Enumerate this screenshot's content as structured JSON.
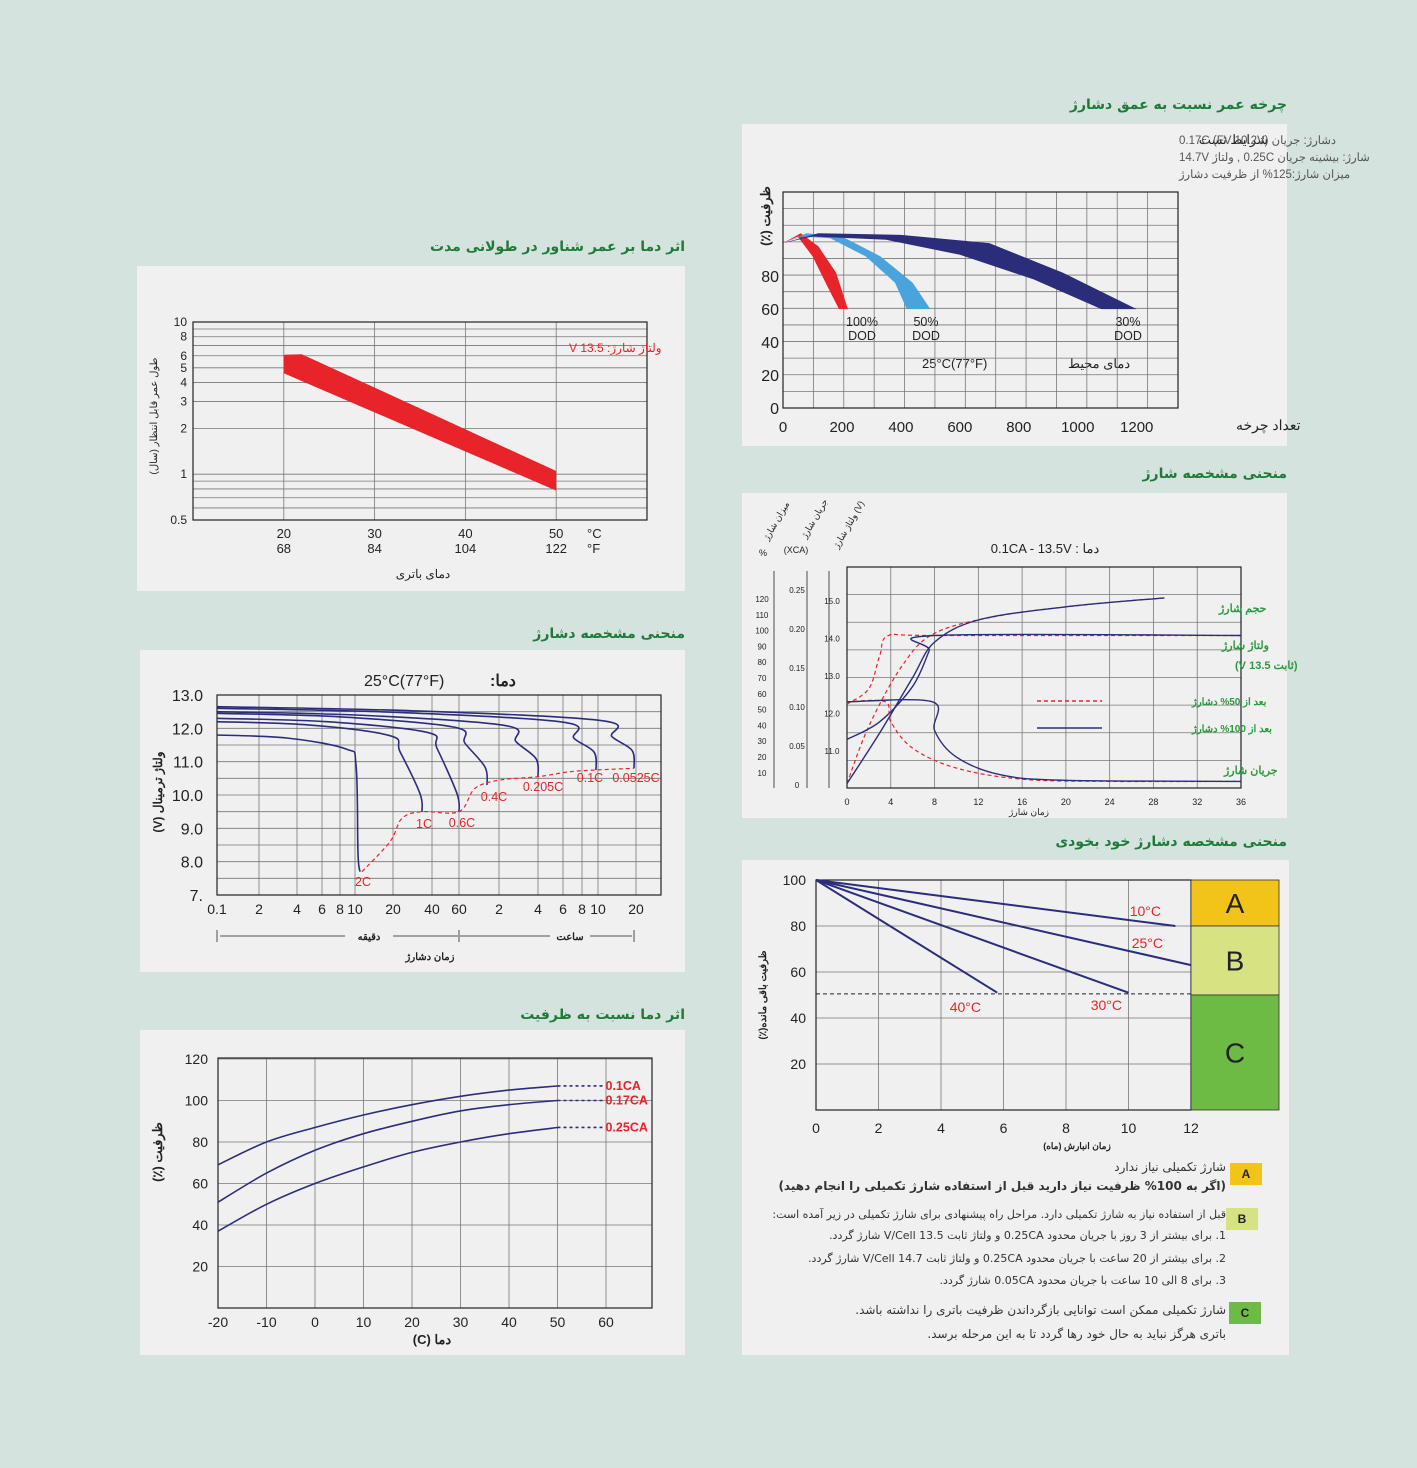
{
  "titles": {
    "cycle_life": "چرخه عمر نسبت به عمق دشارژ",
    "float_life": "اثر دما بر عمر شناور در طولانی مدت",
    "charge": "منحنی مشخصه شارژ",
    "discharge": "منحنی مشخصه دشارژ",
    "self_discharge": "منحنی مشخصه دشارژ خود بخودی",
    "temp_capacity": "اثر دما نسبت به ظرفیت"
  },
  "colors": {
    "navy": "#2b2d7a",
    "red": "#e8232a",
    "light_blue": "#4aa3dc",
    "title_green": "#1f7a3a",
    "zone_a": "#f2c419",
    "zone_b": "#d7e283",
    "zone_c": "#6dba45"
  },
  "chart_data": [
    {
      "id": "cycle_life",
      "type": "area",
      "test_label": "شرایط تست",
      "conditions": [
        "دشارژ: جریان 0.17C (FV 10.2V)",
        "شارژ: بیشینه جریان 0.25C , ولتاژ 14.7V",
        "میزان شارژ:125% از ظرفیت دشارژ"
      ],
      "ylabel": "ظرفیت (٪)",
      "xlabel": "تعداد چرخه",
      "ambient": "دمای محیط",
      "ambient_value": "25°C(77°F)",
      "x_ticks": [
        "0",
        "200",
        "400",
        "600",
        "800",
        "1000",
        "1200"
      ],
      "y_ticks": [
        "0",
        "20",
        "40",
        "60",
        "80"
      ],
      "xlim": [
        0,
        1340
      ],
      "ylim": [
        0,
        131
      ],
      "series": [
        {
          "name": "100% DOD",
          "label_top": "100%",
          "label_bottom": "DOD",
          "upper": [
            [
              0,
              100
            ],
            [
              60,
              106
            ],
            [
              120,
              98
            ],
            [
              180,
              82
            ],
            [
              220,
              60
            ]
          ],
          "lower": [
            [
              0,
              100
            ],
            [
              50,
              104
            ],
            [
              100,
              92
            ],
            [
              150,
              74
            ],
            [
              190,
              60
            ]
          ]
        },
        {
          "name": "50% DOD",
          "label_top": "50%",
          "label_bottom": "DOD",
          "upper": [
            [
              0,
              100
            ],
            [
              80,
              106
            ],
            [
              200,
              104
            ],
            [
              330,
              92
            ],
            [
              440,
              76
            ],
            [
              500,
              60
            ]
          ],
          "lower": [
            [
              0,
              100
            ],
            [
              60,
              104
            ],
            [
              160,
              103
            ],
            [
              280,
              92
            ],
            [
              380,
              76
            ],
            [
              420,
              60
            ]
          ]
        },
        {
          "name": "30% DOD",
          "label_top": "30%",
          "label_bottom": "DOD",
          "upper": [
            [
              0,
              100
            ],
            [
              120,
              106
            ],
            [
              400,
              105
            ],
            [
              700,
              100
            ],
            [
              950,
              82
            ],
            [
              1200,
              60
            ]
          ],
          "lower": [
            [
              0,
              100
            ],
            [
              100,
              104
            ],
            [
              350,
              102
            ],
            [
              600,
              93
            ],
            [
              850,
              78
            ],
            [
              1080,
              60
            ]
          ]
        }
      ]
    },
    {
      "id": "float_life",
      "type": "area",
      "ylabel": "طول عمر قابل انتظار (سال)",
      "xlabel": "دمای باتری",
      "annotation": "ولتاژ شارژ: 13.5 V",
      "y_ticks": [
        "10",
        "8",
        "6",
        "5",
        "4",
        "3",
        "2",
        "1",
        "0.5"
      ],
      "x_ticks_c": [
        "20",
        "30",
        "40",
        "50"
      ],
      "x_ticks_f": [
        "68",
        "84",
        "104",
        "122"
      ],
      "unit_c": "°C",
      "unit_f": "°F",
      "xlim": [
        10,
        60
      ],
      "ylim": [
        0.5,
        10
      ],
      "yscale": "log",
      "band": {
        "x": [
          20,
          50
        ],
        "upper": [
          6.1,
          1.05
        ],
        "lower": [
          4.6,
          0.78
        ]
      }
    },
    {
      "id": "discharge",
      "type": "line",
      "title_label": "دما:",
      "title_value": "25°C(77°F)",
      "ylabel": "ولتاژ ترمینال (V)",
      "xlabel": "زمان دشارژ",
      "minutes_label": "دقیقه",
      "hours_label": "ساعت",
      "y_ticks": [
        "13.0",
        "12.0",
        "11.0",
        "10.0",
        "9.0",
        "8.0",
        "7."
      ],
      "x_ticks": [
        "0.1",
        "2",
        "4",
        "6",
        "8",
        "10",
        "20",
        "40",
        "60",
        "2",
        "4",
        "6",
        "8",
        "10",
        "20"
      ],
      "ylim": [
        7,
        13
      ],
      "series": [
        {
          "name": "2C",
          "v0": 11.8,
          "end_v": 7.7
        },
        {
          "name": "1C",
          "v0": 12.2,
          "end_v": 9.5
        },
        {
          "name": "0.6C",
          "v0": 12.3,
          "end_v": 9.5
        },
        {
          "name": "0.4C",
          "v0": 12.45,
          "end_v": 10.3
        },
        {
          "name": "0.205C",
          "v0": 12.5,
          "end_v": 10.55
        },
        {
          "name": "0.1C",
          "v0": 12.6,
          "end_v": 10.75
        },
        {
          "name": "0.0525C",
          "v0": 12.65,
          "end_v": 10.8
        }
      ]
    },
    {
      "id": "temp_capacity",
      "type": "line",
      "ylabel": "ظرفیت (٪)",
      "xlabel": "دما (C)",
      "x_ticks": [
        "-20",
        "-10",
        "0",
        "10",
        "20",
        "30",
        "40",
        "50",
        "60"
      ],
      "y_ticks": [
        "120",
        "100",
        "80",
        "60",
        "40",
        "20"
      ],
      "xlim": [
        -20,
        65
      ],
      "ylim": [
        0,
        120
      ],
      "series": [
        {
          "name": "0.1CA",
          "x": [
            -20,
            -10,
            0,
            10,
            20,
            30,
            40,
            50
          ],
          "y": [
            69,
            80,
            87,
            93,
            98,
            102,
            105,
            107
          ]
        },
        {
          "name": "0.17CA",
          "x": [
            -20,
            -10,
            0,
            10,
            20,
            30,
            40,
            50
          ],
          "y": [
            51,
            65,
            76,
            84,
            90,
            95,
            98,
            100
          ]
        },
        {
          "name": "0.25CA",
          "x": [
            -20,
            -10,
            0,
            10,
            20,
            30,
            40,
            50
          ],
          "y": [
            37,
            50,
            60,
            68,
            75,
            80,
            84,
            87
          ]
        }
      ]
    },
    {
      "id": "charge",
      "type": "line",
      "title": "دما : 0.1CA - 13.5V",
      "axis_headers": [
        "میزان شارژ",
        "جریان شارژ",
        "ولتاژ شارژ (V)"
      ],
      "pct_label": "%",
      "xca_label": "(XCA)",
      "xlabel": "زمان شارژ",
      "x_ticks": [
        "0",
        "4",
        "8",
        "12",
        "16",
        "20",
        "24",
        "28",
        "32",
        "36"
      ],
      "pct_ticks": [
        "120",
        "110",
        "100",
        "90",
        "80",
        "70",
        "60",
        "50",
        "40",
        "30",
        "20",
        "10"
      ],
      "xca_ticks": [
        "0.25",
        "0.20",
        "0.15",
        "0.10",
        "0.05",
        "0"
      ],
      "volt_ticks": [
        "15.0",
        "14.0",
        "13.0",
        "12.0",
        "11.0"
      ],
      "labels": {
        "volume": "حجم شارژ",
        "voltage": "ولتاژ شارژ",
        "voltage_const": "(ثابت 13.5 V)",
        "current": "جریان شارژ",
        "after50": "بعد از 50% دشارژ",
        "after100": "بعد از 100% دشارژ"
      },
      "xlim": [
        0,
        36
      ]
    },
    {
      "id": "self_discharge",
      "type": "line",
      "ylabel": "ظرفیت باقی مانده(٪)",
      "xlabel": "زمان انبارش (ماه)",
      "x_ticks": [
        "0",
        "2",
        "4",
        "6",
        "8",
        "10",
        "12"
      ],
      "y_ticks": [
        "100",
        "80",
        "60",
        "40",
        "20"
      ],
      "xlim": [
        0,
        12
      ],
      "ylim": [
        0,
        100
      ],
      "series": [
        {
          "name": "10°C",
          "x": [
            0,
            11.5
          ],
          "y": [
            100,
            80
          ]
        },
        {
          "name": "25°C",
          "x": [
            0,
            12
          ],
          "y": [
            100,
            63
          ]
        },
        {
          "name": "30°C",
          "x": [
            0,
            10
          ],
          "y": [
            100,
            51
          ]
        },
        {
          "name": "40°C",
          "x": [
            0,
            5.8
          ],
          "y": [
            100,
            51
          ]
        }
      ],
      "zones": [
        "A",
        "B",
        "C"
      ]
    }
  ],
  "legend": {
    "a_lines": [
      "شارژ تکمیلی نیاز ندارد",
      "(اگر به 100% ظرفیت نیاز دارید قبل از استفاده شارژ تکمیلی را انجام دهید)"
    ],
    "b_lines": [
      "قبل از استفاده نیاز به شارژ تکمیلی دارد. مراحل راه پیشنهادی برای شارژ تکمیلی در زیر آمده است:",
      "1. برای بیشتر از 3 روز با جریان محدود 0.25CA و ولتاژ ثابت 13.5 V/Cell شارژ گردد.",
      "2. برای بیشتر از 20 ساعت با جریان محدود 0.25CA و ولتاژ ثابت 14.7 V/Cell شارژ گردد.",
      "3. برای 8 الی 10 ساعت با جریان محدود 0.05CA شارژ گردد."
    ],
    "c_lines": [
      "شارژ تکمیلی ممکن است توانایی بازگرداندن ظرفیت باتری را نداشته باشد.",
      "باتری هرگز نباید به حال خود رها گردد تا به این مرحله برسد."
    ],
    "badges": [
      "A",
      "B",
      "C"
    ]
  }
}
